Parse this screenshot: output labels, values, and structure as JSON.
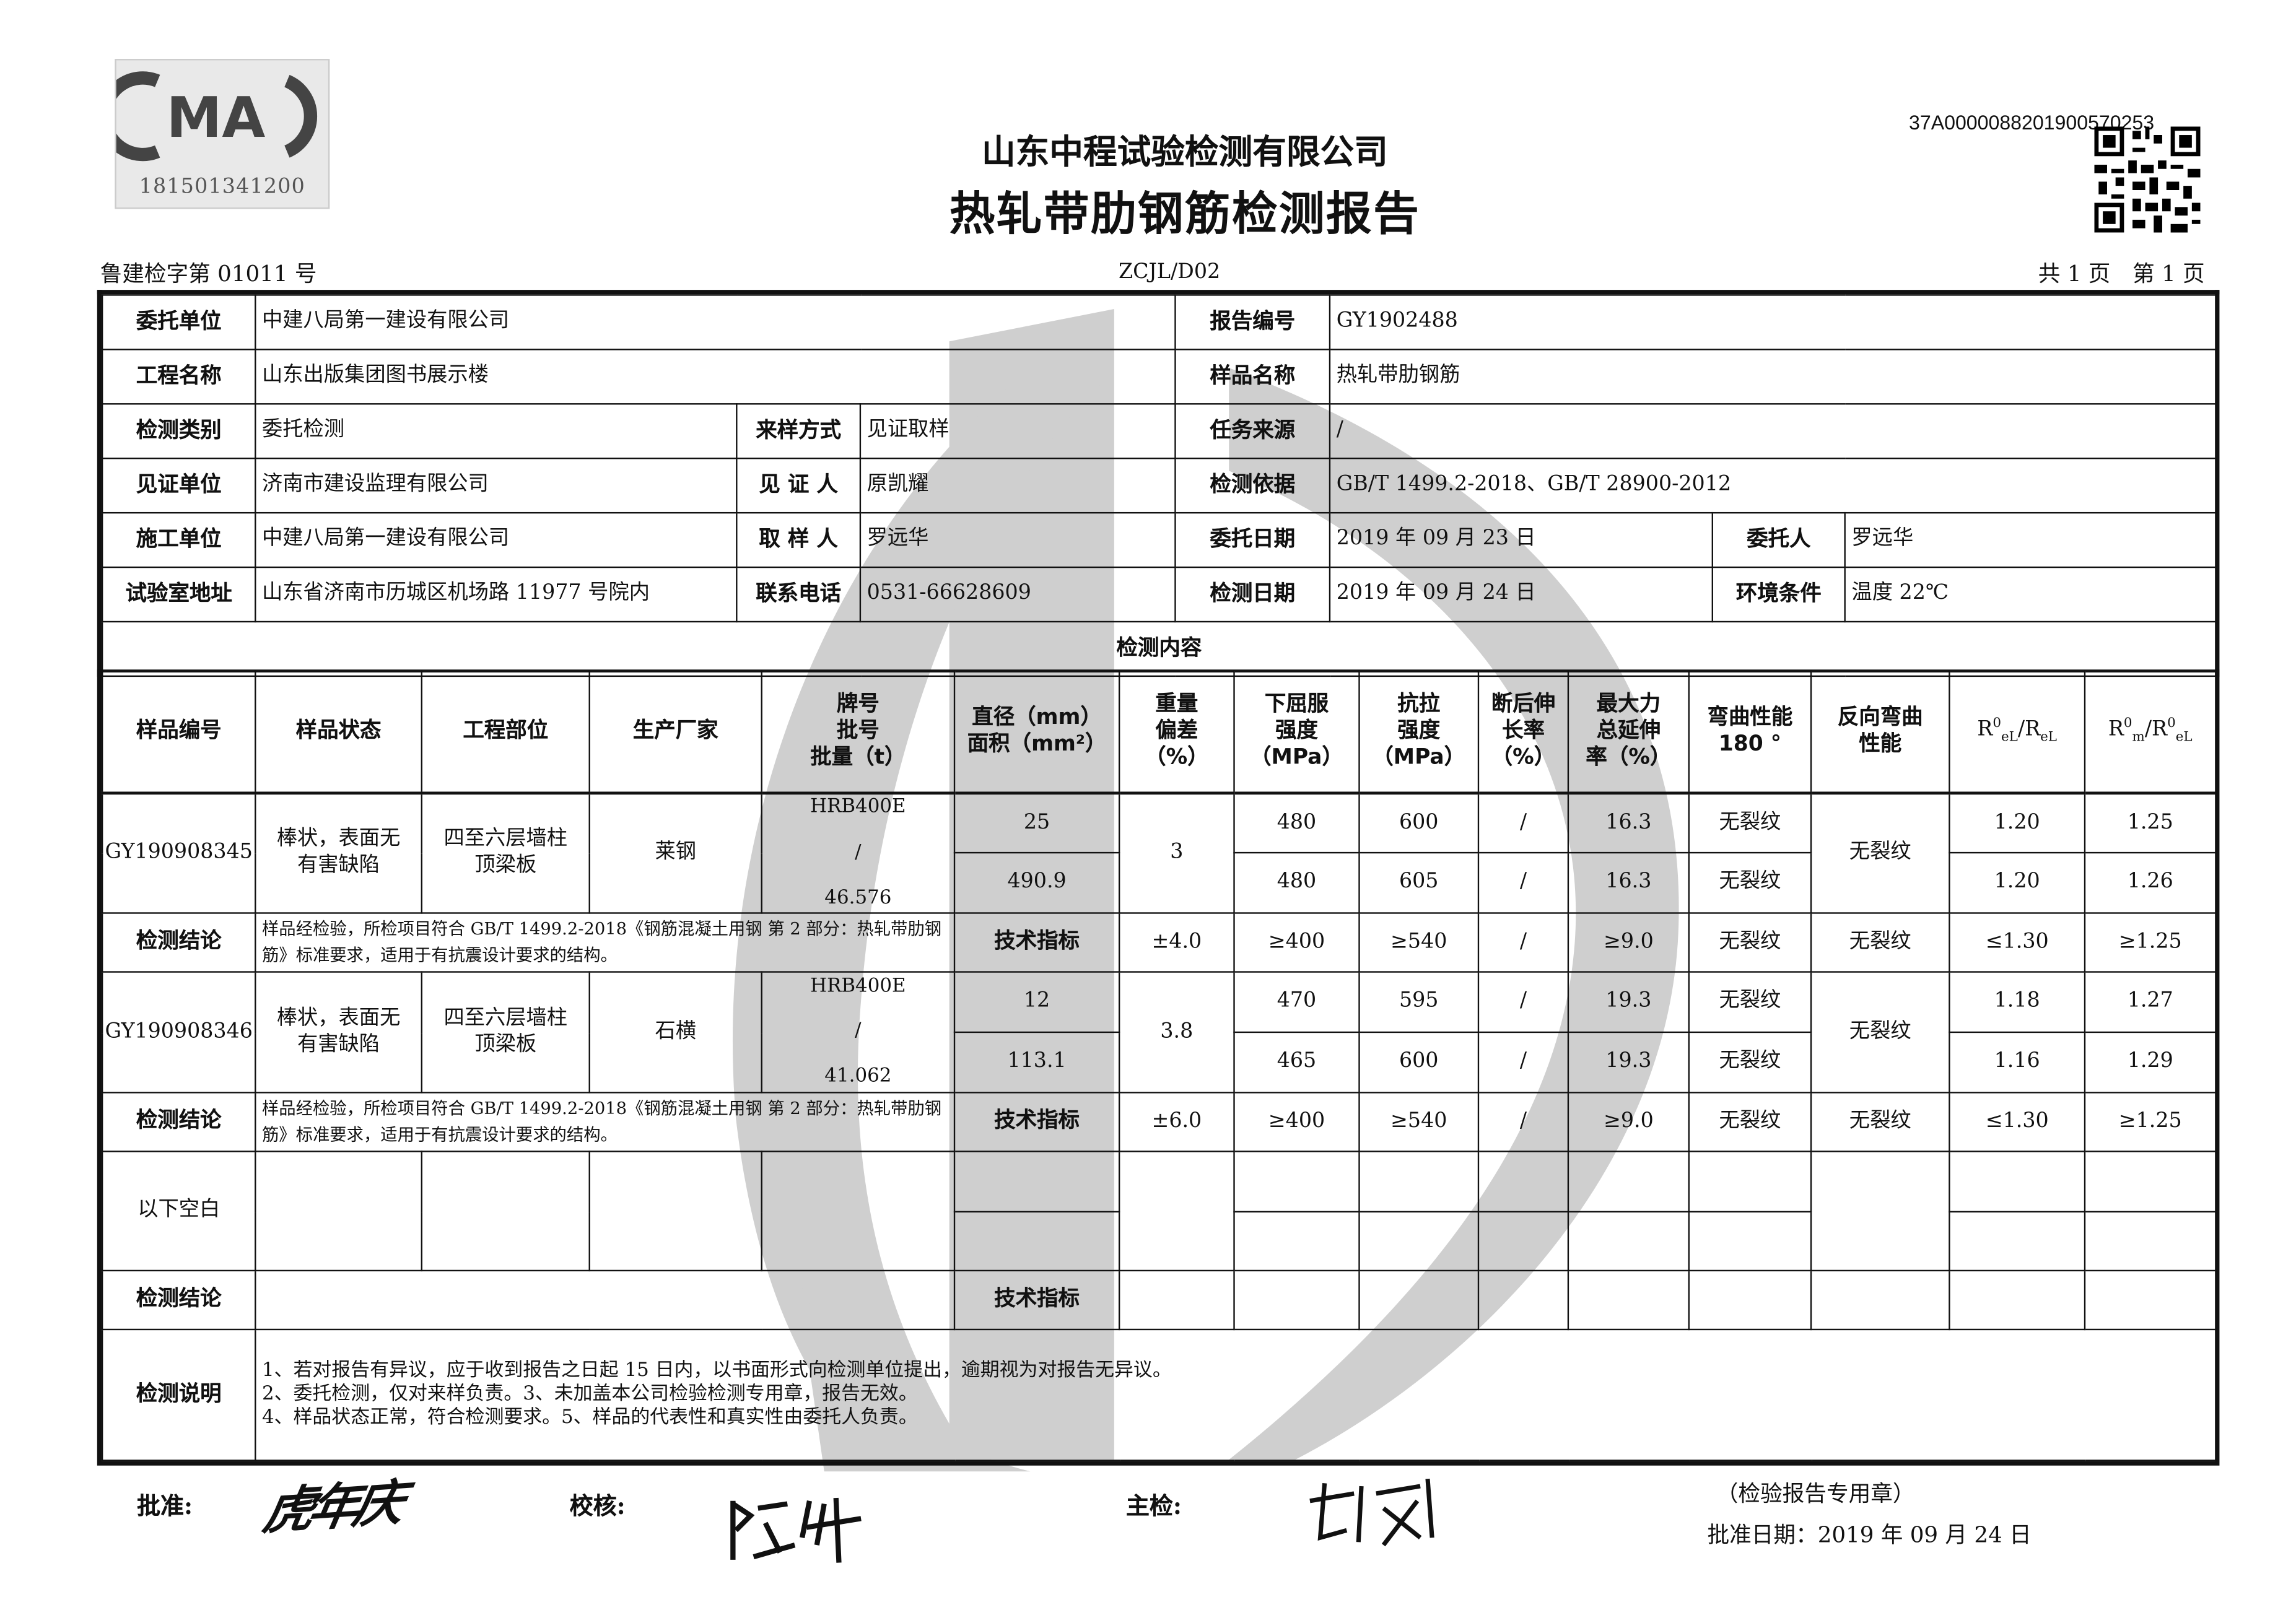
{
  "header": {
    "cma_logo": "CMA",
    "cma_number": "181501341200",
    "company": "山东中程试验检测有限公司",
    "title": "热轧带肋钢筋检测报告",
    "report_code": "37A0000088201900570253",
    "license": "鲁建检字第 01011 号",
    "form_no": "ZCJL/D02",
    "pages": "共 1 页　第 1 页"
  },
  "info": {
    "client_label": "委托单位",
    "client": "中建八局第一建设有限公司",
    "report_no_label": "报告编号",
    "report_no": "GY1902488",
    "project_label": "工程名称",
    "project": "山东出版集团图书展示楼",
    "sample_name_label": "样品名称",
    "sample_name": "热轧带肋钢筋",
    "test_type_label": "检测类别",
    "test_type": "委托检测",
    "sampling_label": "来样方式",
    "sampling": "见证取样",
    "task_source_label": "任务来源",
    "task_source": "/",
    "witness_unit_label": "见证单位",
    "witness_unit": "济南市建设监理有限公司",
    "witness_label": "见 证 人",
    "witness": "原凯耀",
    "standard_label": "检测依据",
    "standard": "GB/T 1499.2-2018、GB/T 28900-2012",
    "builder_label": "施工单位",
    "builder": "中建八局第一建设有限公司",
    "sampler_label": "取 样 人",
    "sampler": "罗远华",
    "commission_date_label": "委托日期",
    "commission_date": "2019 年 09 月 23 日",
    "consignor_label": "委托人",
    "consignor": "罗远华",
    "lab_address_label": "试验室地址",
    "lab_address": "山东省济南市历城区机场路 11977 号院内",
    "phone_label": "联系电话",
    "phone": "0531-66628609",
    "test_date_label": "检测日期",
    "test_date": "2019 年 09 月 24 日",
    "env_label": "环境条件",
    "env": "温度 22℃",
    "content_label": "检测内容"
  },
  "columns": {
    "sample_no": "样品编号",
    "state": "样品状态",
    "location": "工程部位",
    "maker": "生产厂家",
    "brand": [
      "牌号",
      "批号",
      "批量（t）"
    ],
    "diameter": [
      "直径（mm）",
      "面积（mm²）"
    ],
    "weight": [
      "重量",
      "偏差",
      "（%）"
    ],
    "yield": [
      "下屈服",
      "强度",
      "（MPa）"
    ],
    "tensile": [
      "抗拉",
      "强度",
      "（MPa）"
    ],
    "elong": [
      "断后伸",
      "长率",
      "（%）"
    ],
    "agt": [
      "最大力",
      "总延伸",
      "率（%）"
    ],
    "bend": [
      "弯曲性能",
      "180 °"
    ],
    "reverse": [
      "反向弯曲",
      "性能"
    ],
    "ratio1": {
      "r": "R",
      "sup": "0",
      "sub": "eL",
      "mid": "/R",
      "sub2": "eL"
    },
    "ratio2": {
      "r": "R",
      "sup": "0",
      "sub": "m",
      "mid": "/R",
      "sup2": "0",
      "sub2": "eL"
    }
  },
  "samples": [
    {
      "id": "GY190908345",
      "state": "棒状，表面无有害缺陷",
      "location": "四至六层墙柱顶梁板",
      "maker": "莱钢",
      "brand": "HRB400E",
      "batch": "/",
      "qty": "46.576",
      "diameter": "25",
      "area": "490.9",
      "weight": "3",
      "reverse": "无裂纹",
      "tests": [
        {
          "yield": "480",
          "tensile": "600",
          "elong": "/",
          "agt": "16.3",
          "bend": "无裂纹",
          "r1": "1.20",
          "r2": "1.25"
        },
        {
          "yield": "480",
          "tensile": "605",
          "elong": "/",
          "agt": "16.3",
          "bend": "无裂纹",
          "r1": "1.20",
          "r2": "1.26"
        }
      ],
      "conclusion_label": "检测结论",
      "conclusion": "样品经检验，所检项目符合 GB/T 1499.2-2018《钢筋混凝土用钢 第 2 部分：热轧带肋钢筋》标准要求，适用于有抗震设计要求的结构。",
      "spec": {
        "label": "技术指标",
        "weight": "±4.0",
        "yield": "≥400",
        "tensile": "≥540",
        "elong": "/",
        "agt": "≥9.0",
        "bend": "无裂纹",
        "reverse": "无裂纹",
        "r1": "≤1.30",
        "r2": "≥1.25"
      }
    },
    {
      "id": "GY190908346",
      "state": "棒状，表面无有害缺陷",
      "location": "四至六层墙柱顶梁板",
      "maker": "石横",
      "brand": "HRB400E",
      "batch": "/",
      "qty": "41.062",
      "diameter": "12",
      "area": "113.1",
      "weight": "3.8",
      "reverse": "无裂纹",
      "tests": [
        {
          "yield": "470",
          "tensile": "595",
          "elong": "/",
          "agt": "19.3",
          "bend": "无裂纹",
          "r1": "1.18",
          "r2": "1.27"
        },
        {
          "yield": "465",
          "tensile": "600",
          "elong": "/",
          "agt": "19.3",
          "bend": "无裂纹",
          "r1": "1.16",
          "r2": "1.29"
        }
      ],
      "conclusion_label": "检测结论",
      "conclusion": "样品经检验，所检项目符合 GB/T 1499.2-2018《钢筋混凝土用钢 第 2 部分：热轧带肋钢筋》标准要求，适用于有抗震设计要求的结构。",
      "spec": {
        "label": "技术指标",
        "weight": "±6.0",
        "yield": "≥400",
        "tensile": "≥540",
        "elong": "/",
        "agt": "≥9.0",
        "bend": "无裂纹",
        "reverse": "无裂纹",
        "r1": "≤1.30",
        "r2": "≥1.25"
      }
    }
  ],
  "blank": {
    "label": "以下空白",
    "conclusion_label": "检测结论",
    "spec_label": "技术指标"
  },
  "notes": {
    "label": "检测说明",
    "lines": [
      "1、若对报告有异议，应于收到报告之日起 15 日内，以书面形式向检测单位提出，逾期视为对报告无异议。",
      "2、委托检测，仅对来样负责。3、未加盖本公司检验检测专用章，报告无效。",
      "4、样品状态正常，符合检测要求。5、样品的代表性和真实性由委托人负责。"
    ]
  },
  "footer": {
    "approve_label": "批准:",
    "review_label": "校核:",
    "inspector_label": "主检:",
    "seal_note": "（检验报告专用章）",
    "approve_date": "批准日期：2019 年 09 月 24 日",
    "approve_signature": "虎年庆",
    "review_signature": "陆华",
    "inspector_signature": "蔡斌"
  },
  "colors": {
    "watermark": "#cfcfcf",
    "ink": "#111111"
  }
}
